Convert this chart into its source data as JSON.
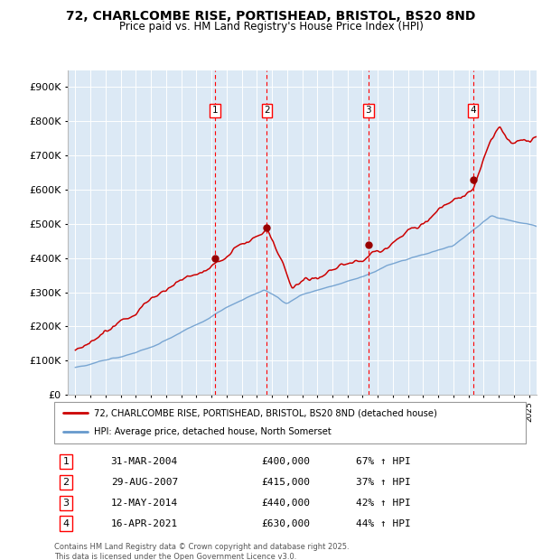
{
  "title_line1": "72, CHARLCOMBE RISE, PORTISHEAD, BRISTOL, BS20 8ND",
  "title_line2": "Price paid vs. HM Land Registry's House Price Index (HPI)",
  "plot_bg_color": "#dce9f5",
  "red_line_label": "72, CHARLCOMBE RISE, PORTISHEAD, BRISTOL, BS20 8ND (detached house)",
  "blue_line_label": "HPI: Average price, detached house, North Somerset",
  "transactions": [
    {
      "num": 1,
      "date": "31-MAR-2004",
      "price": 400000,
      "hpi_pct": "67% ↑ HPI",
      "x": 2004.25
    },
    {
      "num": 2,
      "date": "29-AUG-2007",
      "price": 415000,
      "hpi_pct": "37% ↑ HPI",
      "x": 2007.67
    },
    {
      "num": 3,
      "date": "12-MAY-2014",
      "price": 440000,
      "hpi_pct": "42% ↑ HPI",
      "x": 2014.37
    },
    {
      "num": 4,
      "date": "16-APR-2021",
      "price": 630000,
      "hpi_pct": "44% ↑ HPI",
      "x": 2021.29
    }
  ],
  "footnote": "Contains HM Land Registry data © Crown copyright and database right 2025.\nThis data is licensed under the Open Government Licence v3.0.",
  "ylim": [
    0,
    950000
  ],
  "xlim": [
    1994.5,
    2025.5
  ],
  "yticks": [
    0,
    100000,
    200000,
    300000,
    400000,
    500000,
    600000,
    700000,
    800000,
    900000
  ],
  "ytick_labels": [
    "£0",
    "£100K",
    "£200K",
    "£300K",
    "£400K",
    "£500K",
    "£600K",
    "£700K",
    "£800K",
    "£900K"
  ],
  "red_color": "#cc0000",
  "blue_color": "#6699cc",
  "red_dot_color": "#990000"
}
